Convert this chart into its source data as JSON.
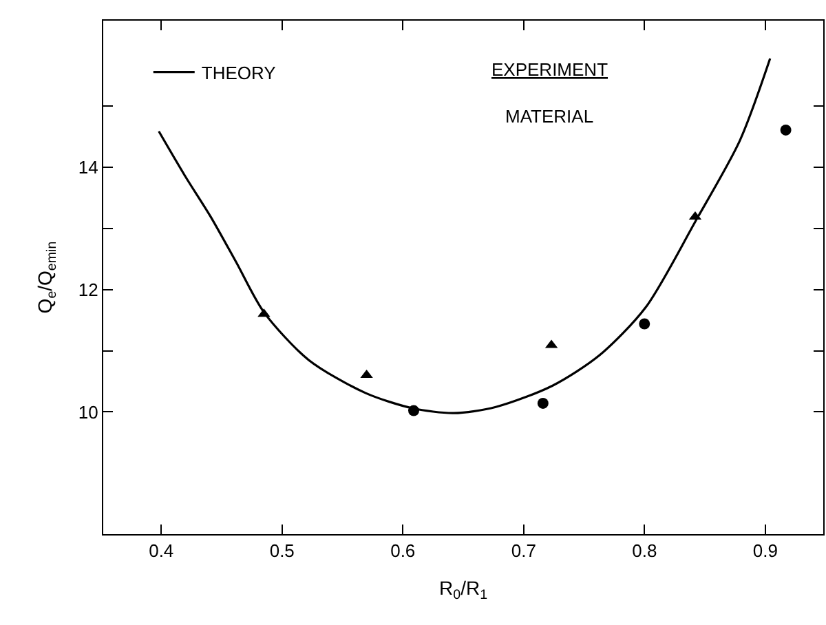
{
  "chart_data": {
    "type": "line",
    "xlabel": "R$_{0}$/R$_{1}$",
    "ylabel": "Q$_{e}$/Q$_{emin}$",
    "xlim": [
      0.352,
      0.948
    ],
    "ylim": [
      8.0,
      16.4
    ],
    "xticks": [
      0.4,
      0.5,
      0.6,
      0.7,
      0.8,
      0.9
    ],
    "yticks": [
      10,
      {
        "value": 11,
        "label": null
      },
      12,
      {
        "value": 13,
        "label": null
      },
      14,
      {
        "value": 15,
        "label": null
      }
    ],
    "legend": "top left",
    "annotations": [
      "EXPERIMENT",
      "MATERIAL"
    ],
    "series": [
      {
        "name": "THEORY",
        "color": "#000000",
        "marker": "none",
        "line_style": "solid",
        "x": [
          0.398,
          0.42,
          0.441,
          0.462,
          0.485,
          0.522,
          0.569,
          0.608,
          0.642,
          0.677,
          0.724,
          0.763,
          0.801,
          0.842,
          0.879,
          0.904
        ],
        "values": [
          14.59,
          13.85,
          13.19,
          12.45,
          11.63,
          10.85,
          10.31,
          10.06,
          9.98,
          10.08,
          10.43,
          10.93,
          11.71,
          13.11,
          14.44,
          15.78
        ]
      },
      {
        "type": "scatter",
        "color": "#000000",
        "marker": "triangle",
        "x": [
          0.485,
          0.57,
          0.723,
          0.842
        ],
        "values": [
          11.6,
          10.6,
          11.09,
          13.19
        ]
      },
      {
        "type": "scatter",
        "color": "#000000",
        "marker": "circle",
        "x": [
          0.609,
          0.716,
          0.8,
          0.917
        ],
        "values": [
          10.02,
          10.14,
          11.44,
          14.61
        ]
      }
    ]
  }
}
